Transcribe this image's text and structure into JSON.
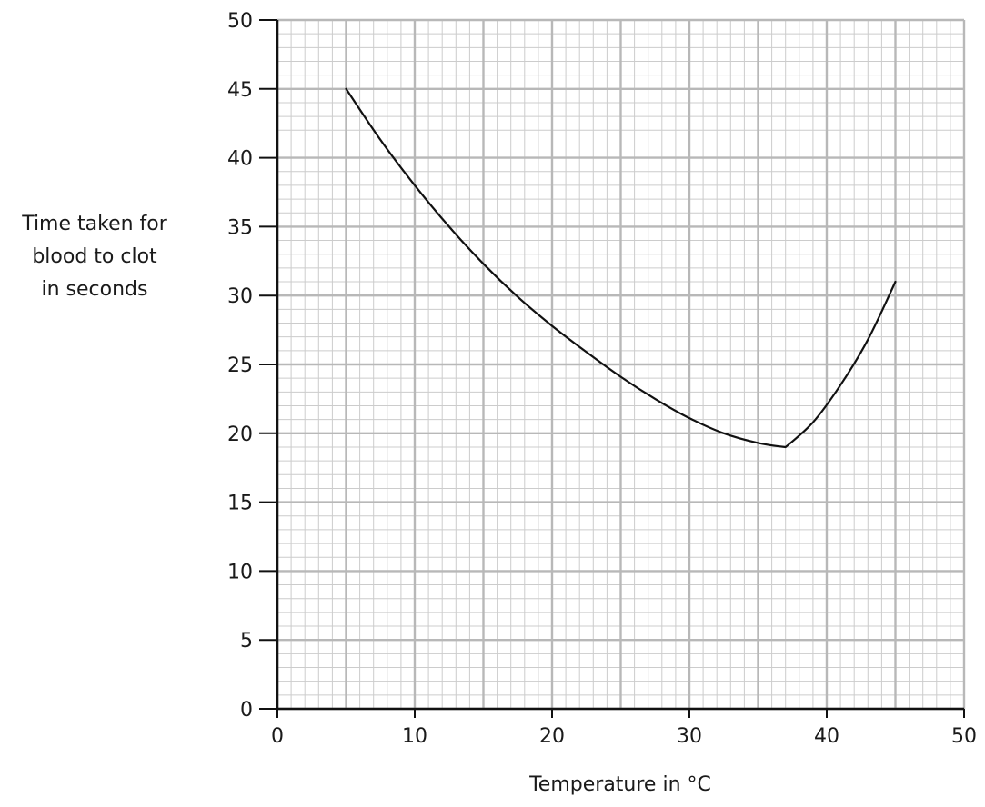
{
  "chart_data": {
    "type": "line",
    "title": "",
    "xlabel": "Temperature in °C",
    "ylabel_lines": [
      "Time taken for",
      "blood to clot",
      "in seconds"
    ],
    "xlim": [
      0,
      50
    ],
    "ylim": [
      0,
      50
    ],
    "x_ticks": [
      0,
      10,
      20,
      30,
      40,
      50
    ],
    "y_ticks": [
      0,
      5,
      10,
      15,
      20,
      25,
      30,
      35,
      40,
      45,
      50
    ],
    "grid": true,
    "series": [
      {
        "x": [
          5,
          7.5,
          10,
          12.5,
          15,
          17.5,
          20,
          22.5,
          25,
          27.5,
          30,
          32.5,
          35,
          37,
          39,
          41,
          43,
          45
        ],
        "y": [
          45,
          41.3,
          38,
          35,
          32.3,
          29.9,
          27.8,
          25.9,
          24.1,
          22.5,
          21.1,
          20,
          19.3,
          19,
          20.8,
          23.5,
          26.8,
          31
        ]
      }
    ],
    "colors": {
      "line": "#111111",
      "major_grid": "#b8b8b8",
      "minor_grid": "#cccccc",
      "axis": "#111111"
    }
  }
}
